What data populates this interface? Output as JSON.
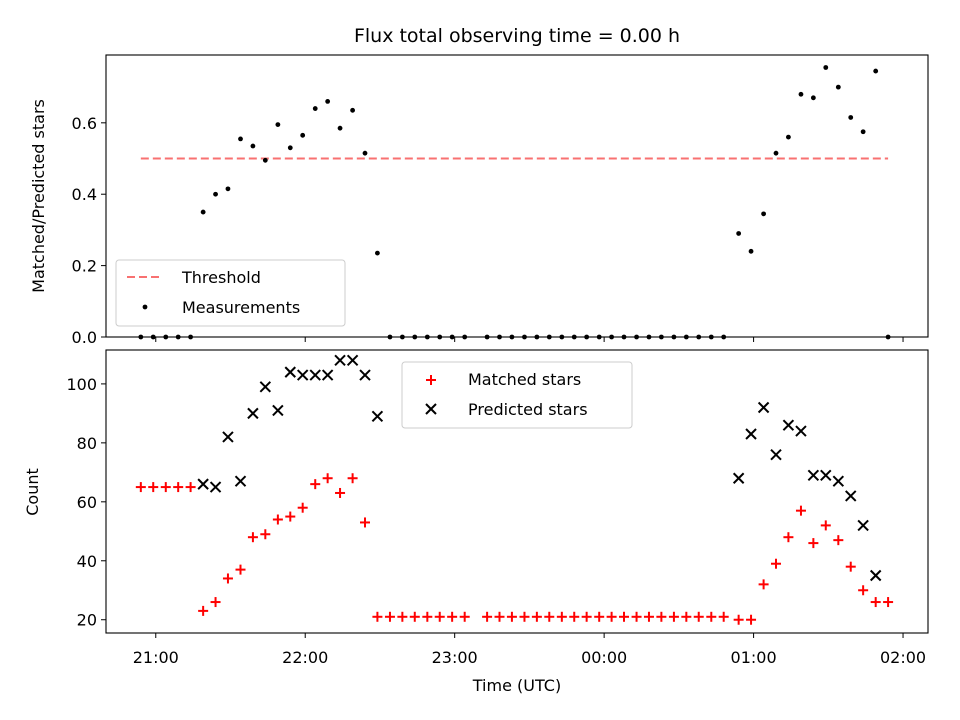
{
  "chart_data": {
    "title": "Flux total observing time = 0.00 h",
    "xlabel": "Time (UTC)",
    "xtick_labels": [
      "21:00",
      "22:00",
      "23:00",
      "00:00",
      "01:00",
      "02:00"
    ],
    "xtick_hours": [
      21,
      22,
      23,
      24,
      25,
      26
    ],
    "xlim_hours": [
      20.667,
      26.167
    ],
    "colors": {
      "threshold": "#f87171",
      "measurements": "#000000",
      "matched": "#ff0000",
      "predicted": "#000000"
    },
    "panels": [
      {
        "type": "scatter",
        "ylabel": "Matched/Predicted stars",
        "ylim": [
          0,
          0.79
        ],
        "yticks": [
          0.0,
          0.2,
          0.4,
          0.6
        ],
        "ytick_labels": [
          "0.0",
          "0.2",
          "0.4",
          "0.6"
        ],
        "legend": {
          "position": "lower-left",
          "entries": [
            "Threshold",
            "Measurements"
          ]
        },
        "threshold": {
          "name": "Threshold",
          "y": 0.5,
          "x_from": 20.9,
          "x_to": 25.9
        },
        "series": [
          {
            "name": "Measurements",
            "x": [
              20.9,
              20.983,
              21.067,
              21.15,
              21.233,
              21.317,
              21.4,
              21.483,
              21.567,
              21.65,
              21.733,
              21.817,
              21.9,
              21.983,
              22.067,
              22.15,
              22.233,
              22.317,
              22.4,
              22.483,
              22.567,
              22.65,
              22.733,
              22.817,
              22.9,
              22.983,
              23.067,
              23.217,
              23.3,
              23.383,
              23.467,
              23.55,
              23.633,
              23.717,
              23.8,
              23.883,
              23.967,
              24.05,
              24.133,
              24.217,
              24.3,
              24.383,
              24.467,
              24.55,
              24.633,
              24.717,
              24.8,
              24.9,
              24.983,
              25.067,
              25.15,
              25.233,
              25.317,
              25.4,
              25.483,
              25.567,
              25.65,
              25.733,
              25.817,
              25.9
            ],
            "y": [
              0.0,
              0.0,
              0.0,
              0.0,
              0.0,
              0.35,
              0.4,
              0.415,
              0.555,
              0.535,
              0.495,
              0.595,
              0.53,
              0.565,
              0.64,
              0.66,
              0.585,
              0.635,
              0.515,
              0.235,
              0.0,
              0.0,
              0.0,
              0.0,
              0.0,
              0.0,
              0.0,
              0.0,
              0.0,
              0.0,
              0.0,
              0.0,
              0.0,
              0.0,
              0.0,
              0.0,
              0.0,
              0.0,
              0.0,
              0.0,
              0.0,
              0.0,
              0.0,
              0.0,
              0.0,
              0.0,
              0.0,
              0.29,
              0.24,
              0.345,
              0.515,
              0.56,
              0.68,
              0.67,
              0.755,
              0.7,
              0.615,
              0.575,
              0.745,
              0.0
            ]
          }
        ]
      },
      {
        "type": "scatter",
        "ylabel": "Count",
        "ylim": [
          15.5,
          111.5
        ],
        "yticks": [
          20,
          40,
          60,
          80,
          100
        ],
        "ytick_labels": [
          "20",
          "40",
          "60",
          "80",
          "100"
        ],
        "legend": {
          "position": "upper-center",
          "entries": [
            "Matched stars",
            "Predicted stars"
          ]
        },
        "series": [
          {
            "name": "Matched stars",
            "marker": "plus",
            "x": [
              20.9,
              20.983,
              21.067,
              21.15,
              21.233,
              21.317,
              21.4,
              21.483,
              21.567,
              21.65,
              21.733,
              21.817,
              21.9,
              21.983,
              22.067,
              22.15,
              22.233,
              22.317,
              22.4,
              22.483,
              22.567,
              22.65,
              22.733,
              22.817,
              22.9,
              22.983,
              23.067,
              23.217,
              23.3,
              23.383,
              23.467,
              23.55,
              23.633,
              23.717,
              23.8,
              23.883,
              23.967,
              24.05,
              24.133,
              24.217,
              24.3,
              24.383,
              24.467,
              24.55,
              24.633,
              24.717,
              24.8,
              24.9,
              24.983,
              25.067,
              25.15,
              25.233,
              25.317,
              25.4,
              25.483,
              25.567,
              25.65,
              25.733,
              25.817,
              25.9
            ],
            "y": [
              65,
              65,
              65,
              65,
              65,
              23,
              26,
              34,
              37,
              48,
              49,
              54,
              55,
              58,
              66,
              68,
              63,
              68,
              53,
              21,
              21,
              21,
              21,
              21,
              21,
              21,
              21,
              21,
              21,
              21,
              21,
              21,
              21,
              21,
              21,
              21,
              21,
              21,
              21,
              21,
              21,
              21,
              21,
              21,
              21,
              21,
              21,
              20,
              20,
              32,
              39,
              48,
              57,
              46,
              52,
              47,
              38,
              30,
              26,
              26
            ]
          },
          {
            "name": "Predicted stars",
            "marker": "x",
            "x": [
              21.317,
              21.4,
              21.483,
              21.567,
              21.65,
              21.733,
              21.817,
              21.9,
              21.983,
              22.067,
              22.15,
              22.233,
              22.317,
              22.4,
              22.483,
              24.9,
              24.983,
              25.067,
              25.15,
              25.233,
              25.317,
              25.4,
              25.483,
              25.567,
              25.65,
              25.733,
              25.817
            ],
            "y": [
              66,
              65,
              82,
              67,
              90,
              99,
              91,
              104,
              103,
              103,
              103,
              108,
              108,
              103,
              89,
              68,
              83,
              92,
              76,
              86,
              84,
              69,
              69,
              67,
              62,
              52,
              35
            ]
          }
        ]
      }
    ]
  }
}
